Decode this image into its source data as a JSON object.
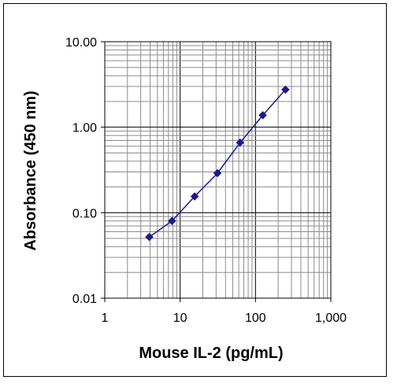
{
  "chart_data": {
    "type": "line",
    "title": "",
    "xlabel": "Mouse IL-2 (pg/mL)",
    "ylabel": "Absorbance (450 nm)",
    "x_scale": "log",
    "y_scale": "log",
    "xlim": [
      1,
      1000
    ],
    "ylim": [
      0.01,
      10
    ],
    "x_ticks": [
      "1",
      "10",
      "100",
      "1,000"
    ],
    "y_ticks": [
      "0.01",
      "0.10",
      "1.00",
      "10.00"
    ],
    "grid": true,
    "legend": "none",
    "series": [
      {
        "color": "#1a1a8c",
        "marker": "diamond",
        "points": [
          {
            "x": 3.9,
            "y": 0.052
          },
          {
            "x": 7.8,
            "y": 0.08
          },
          {
            "x": 15.6,
            "y": 0.155
          },
          {
            "x": 31.3,
            "y": 0.29
          },
          {
            "x": 62.5,
            "y": 0.66
          },
          {
            "x": 125,
            "y": 1.38
          },
          {
            "x": 250,
            "y": 2.75
          }
        ]
      }
    ]
  }
}
